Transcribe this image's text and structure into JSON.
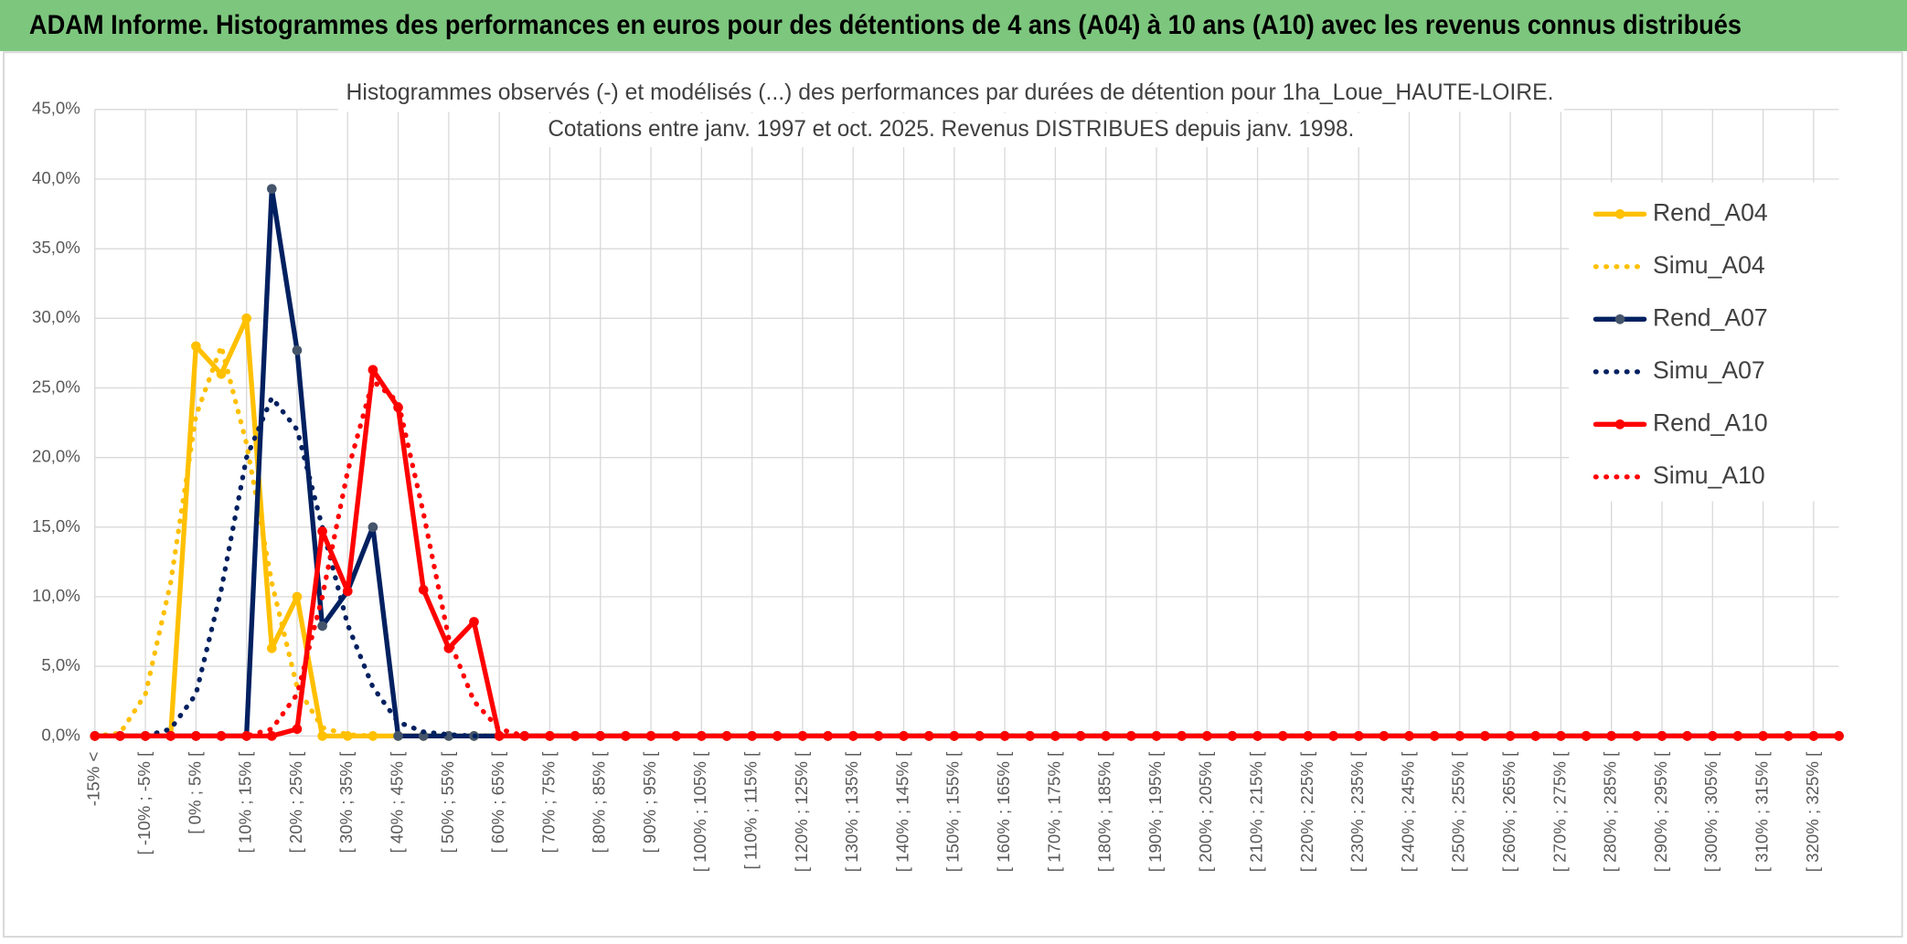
{
  "header": {
    "title": "ADAM Informe. Histogrammes des performances en euros pour des détentions de 4 ans (A04) à 10 ans (A10) avec les revenus connus distribués"
  },
  "chart_data": {
    "type": "line",
    "title": "Histogrammes observés (-) et modélisés (...) des performances par durées de détention pour 1ha_Loue_HAUTE-LOIRE.",
    "subtitle": "Cotations entre janv. 1997 et oct. 2025. Revenus DISTRIBUES depuis janv. 1998.",
    "categories": [
      "-15% <",
      null,
      "[ -10% ; -5% [",
      null,
      "[ 0% ; 5% [",
      null,
      "[ 10% ; 15% [",
      null,
      "[ 20% ; 25% [",
      null,
      "[ 30% ; 35% [",
      null,
      "[ 40% ; 45% [",
      null,
      "[ 50% ; 55% [",
      null,
      "[ 60% ; 65% [",
      null,
      "[ 70% ; 75% [",
      null,
      "[ 80% ; 85% [",
      null,
      "[ 90% ; 95% [",
      null,
      "[ 100% ; 105% [",
      null,
      "[ 110% ; 115% [",
      null,
      "[ 120% ; 125% [",
      null,
      "[ 130% ; 135% [",
      null,
      "[ 140% ; 145% [",
      null,
      "[ 150% ; 155% [",
      null,
      "[ 160% ; 165% [",
      null,
      "[ 170% ; 175% [",
      null,
      "[ 180% ; 185% [",
      null,
      "[ 190% ; 195% [",
      null,
      "[ 200% ; 205% [",
      null,
      "[ 210% ; 215% [",
      null,
      "[ 220% ; 225% [",
      null,
      "[ 230% ; 235% [",
      null,
      "[ 240% ; 245% [",
      null,
      "[ 250% ; 255% [",
      null,
      "[ 260% ; 265% [",
      null,
      "[ 270% ; 275% [",
      null,
      "[ 280% ; 285% [",
      null,
      "[ 290% ; 295% [",
      null,
      "[ 300% ; 305% [",
      null,
      "[ 310% ; 315% [",
      null,
      "[ 320% ; 325% [",
      null
    ],
    "series": [
      {
        "name": "Rend_A04",
        "color": "#ffc000",
        "style": "solid",
        "markers": true,
        "values": [
          0,
          0,
          0,
          0,
          28,
          26,
          30,
          6.3,
          10,
          0,
          0,
          0,
          0,
          0,
          0,
          0,
          0,
          0,
          0,
          0,
          0,
          0,
          0,
          0,
          0,
          0,
          0,
          0,
          0,
          0,
          0,
          0,
          0,
          0,
          0,
          0,
          0,
          0,
          0,
          0,
          0,
          0,
          0,
          0,
          0,
          0,
          0,
          0,
          0,
          0,
          0,
          0,
          0,
          0,
          0,
          0,
          0,
          0,
          0,
          0,
          0,
          0,
          0,
          0,
          0,
          0,
          0,
          0,
          0,
          0
        ]
      },
      {
        "name": "Simu_A04",
        "color": "#ffc000",
        "style": "dotted",
        "markers": false,
        "values": [
          0,
          0.2,
          3,
          11,
          23,
          28,
          21,
          11,
          3.5,
          0.6,
          0.1,
          0,
          0,
          0,
          0,
          0,
          0,
          0,
          0,
          0,
          0,
          0,
          0,
          0,
          0,
          0,
          0,
          0,
          0,
          0,
          0,
          0,
          0,
          0,
          0,
          0,
          0,
          0,
          0,
          0,
          0,
          0,
          0,
          0,
          0,
          0,
          0,
          0,
          0,
          0,
          0,
          0,
          0,
          0,
          0,
          0,
          0,
          0,
          0,
          0,
          0,
          0,
          0,
          0,
          0,
          0,
          0,
          0,
          0,
          0
        ]
      },
      {
        "name": "Rend_A07",
        "color": "#002060",
        "style": "solid",
        "markers": true,
        "values": [
          0,
          0,
          0,
          0,
          0,
          0,
          0,
          39.3,
          27.7,
          7.9,
          10.4,
          15,
          0,
          0,
          0,
          0,
          0,
          0,
          0,
          0,
          0,
          0,
          0,
          0,
          0,
          0,
          0,
          0,
          0,
          0,
          0,
          0,
          0,
          0,
          0,
          0,
          0,
          0,
          0,
          0,
          0,
          0,
          0,
          0,
          0,
          0,
          0,
          0,
          0,
          0,
          0,
          0,
          0,
          0,
          0,
          0,
          0,
          0,
          0,
          0,
          0,
          0,
          0,
          0,
          0,
          0,
          0,
          0,
          0,
          0
        ]
      },
      {
        "name": "Simu_A07",
        "color": "#002060",
        "style": "dotted",
        "markers": false,
        "values": [
          0,
          0,
          0,
          0.5,
          3,
          10.5,
          20,
          24.3,
          22,
          15,
          8,
          3.5,
          1,
          0.3,
          0.1,
          0,
          0,
          0,
          0,
          0,
          0,
          0,
          0,
          0,
          0,
          0,
          0,
          0,
          0,
          0,
          0,
          0,
          0,
          0,
          0,
          0,
          0,
          0,
          0,
          0,
          0,
          0,
          0,
          0,
          0,
          0,
          0,
          0,
          0,
          0,
          0,
          0,
          0,
          0,
          0,
          0,
          0,
          0,
          0,
          0,
          0,
          0,
          0,
          0,
          0,
          0,
          0,
          0,
          0,
          0
        ]
      },
      {
        "name": "Rend_A10",
        "color": "#ff0000",
        "style": "solid",
        "markers": true,
        "values": [
          0,
          0,
          0,
          0,
          0,
          0,
          0,
          0,
          0.5,
          14.7,
          10.4,
          26.3,
          23.6,
          10.5,
          6.3,
          8.2,
          0,
          0,
          0,
          0,
          0,
          0,
          0,
          0,
          0,
          0,
          0,
          0,
          0,
          0,
          0,
          0,
          0,
          0,
          0,
          0,
          0,
          0,
          0,
          0,
          0,
          0,
          0,
          0,
          0,
          0,
          0,
          0,
          0,
          0,
          0,
          0,
          0,
          0,
          0,
          0,
          0,
          0,
          0,
          0,
          0,
          0,
          0,
          0,
          0,
          0,
          0,
          0,
          0,
          0
        ]
      },
      {
        "name": "Simu_A10",
        "color": "#ff0000",
        "style": "dotted",
        "markers": false,
        "values": [
          0,
          0,
          0,
          0,
          0,
          0,
          0,
          0.5,
          3,
          10,
          19,
          25.5,
          24,
          16,
          7,
          2.5,
          0.5,
          0,
          0,
          0,
          0,
          0,
          0,
          0,
          0,
          0,
          0,
          0,
          0,
          0,
          0,
          0,
          0,
          0,
          0,
          0,
          0,
          0,
          0,
          0,
          0,
          0,
          0,
          0,
          0,
          0,
          0,
          0,
          0,
          0,
          0,
          0,
          0,
          0,
          0,
          0,
          0,
          0,
          0,
          0,
          0,
          0,
          0,
          0,
          0,
          0,
          0,
          0,
          0,
          0
        ]
      }
    ],
    "ylim": [
      0,
      45
    ],
    "yticks": [
      {
        "value": 0,
        "label": "0,0%"
      },
      {
        "value": 5,
        "label": "5,0%"
      },
      {
        "value": 10,
        "label": "10,0%"
      },
      {
        "value": 15,
        "label": "15,0%"
      },
      {
        "value": 20,
        "label": "20,0%"
      },
      {
        "value": 25,
        "label": "25,0%"
      },
      {
        "value": 30,
        "label": "30,0%"
      },
      {
        "value": 35,
        "label": "35,0%"
      },
      {
        "value": 40,
        "label": "40,0%"
      },
      {
        "value": 45,
        "label": "45,0%"
      }
    ],
    "grid": true,
    "legend": "upper right"
  }
}
